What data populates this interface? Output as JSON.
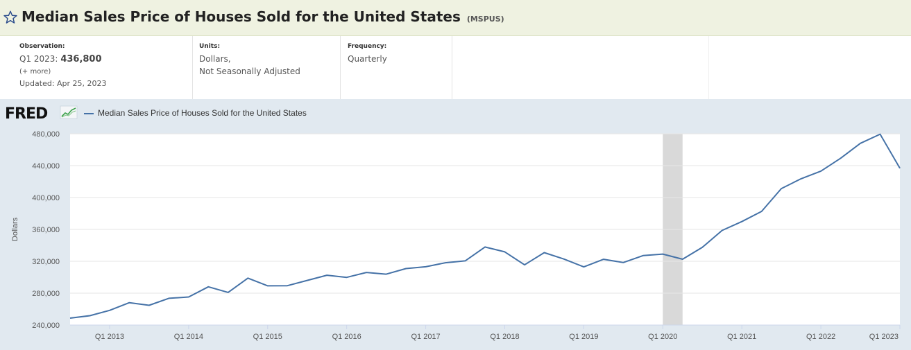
{
  "header": {
    "title": "Median Sales Price of Houses Sold for the United States",
    "series_id": "(MSPUS)"
  },
  "meta": {
    "observation_label": "Observation:",
    "observation_period": "Q1 2023:",
    "observation_value": "436,800",
    "more": "(+ more)",
    "updated": "Updated: Apr 25, 2023",
    "units_label": "Units:",
    "units_line1": "Dollars,",
    "units_line2": "Not Seasonally Adjusted",
    "frequency_label": "Frequency:",
    "frequency_value": "Quarterly"
  },
  "logo": {
    "text": "FRED"
  },
  "colors": {
    "line": "#4572a7",
    "recession": "#d9d9d9",
    "plot_bg": "#ffffff",
    "chart_bg": "#e1e9f0",
    "title_bg": "#eff2e1"
  },
  "chart_data": {
    "type": "line",
    "title": "",
    "xlabel": "",
    "ylabel": "Dollars",
    "ylim": [
      240000,
      480000
    ],
    "yticks": [
      240000,
      280000,
      320000,
      360000,
      400000,
      440000,
      480000
    ],
    "ytick_labels": [
      "240,000",
      "280,000",
      "320,000",
      "360,000",
      "400,000",
      "440,000",
      "480,000"
    ],
    "xtick_labels": [
      "Q1 2013",
      "Q1 2014",
      "Q1 2015",
      "Q1 2016",
      "Q1 2017",
      "Q1 2018",
      "Q1 2019",
      "Q1 2020",
      "Q1 2021",
      "Q1 2022",
      "Q1 2023"
    ],
    "recession_shading": [
      "Q1 2020",
      "Q2 2020"
    ],
    "legend": "top-left",
    "series": [
      {
        "name": "Median Sales Price of Houses Sold for the United States",
        "x": [
          "Q3 2012",
          "Q4 2012",
          "Q1 2013",
          "Q2 2013",
          "Q3 2013",
          "Q4 2013",
          "Q1 2014",
          "Q2 2014",
          "Q3 2014",
          "Q4 2014",
          "Q1 2015",
          "Q2 2015",
          "Q3 2015",
          "Q4 2015",
          "Q1 2016",
          "Q2 2016",
          "Q3 2016",
          "Q4 2016",
          "Q1 2017",
          "Q2 2017",
          "Q3 2017",
          "Q4 2017",
          "Q1 2018",
          "Q2 2018",
          "Q3 2018",
          "Q4 2018",
          "Q1 2019",
          "Q2 2019",
          "Q3 2019",
          "Q4 2019",
          "Q1 2020",
          "Q2 2020",
          "Q3 2020",
          "Q4 2020",
          "Q1 2021",
          "Q2 2021",
          "Q3 2021",
          "Q4 2021",
          "Q1 2022",
          "Q2 2022",
          "Q3 2022",
          "Q4 2022",
          "Q1 2023"
        ],
        "values": [
          248700,
          251700,
          258400,
          268100,
          264800,
          273600,
          275200,
          288000,
          281000,
          298900,
          289200,
          289400,
          296000,
          302500,
          299800,
          306000,
          303800,
          310900,
          313100,
          318200,
          320500,
          337900,
          331800,
          315600,
          330900,
          322800,
          313000,
          322500,
          318400,
          327100,
          329000,
          322600,
          337500,
          358700,
          369800,
          382600,
          411200,
          423600,
          433100,
          449300,
          468000,
          479500,
          436800
        ]
      }
    ]
  }
}
